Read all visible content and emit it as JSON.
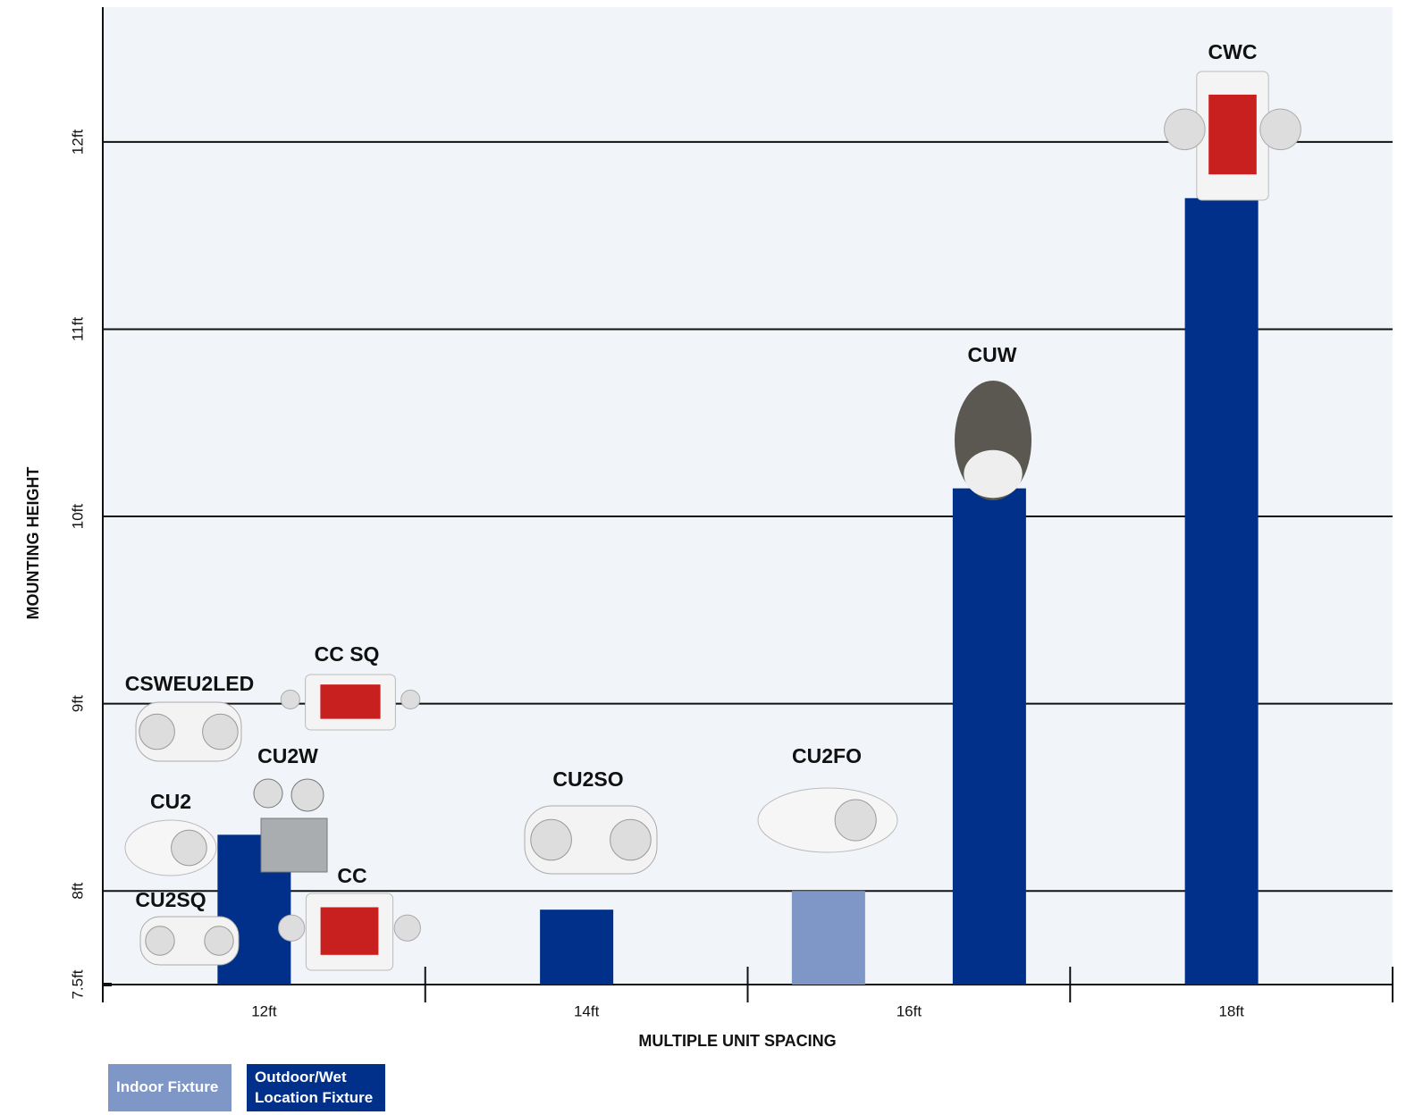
{
  "chart_data": {
    "type": "bar",
    "categories": [
      "12ft",
      "14ft",
      "16ft",
      "18ft"
    ],
    "x_label": "MULTIPLE UNIT SPACING",
    "y_label": "MOUNTING HEIGHT",
    "ylim": [
      7.5,
      12.72
    ],
    "yticks": [
      {
        "value": 7.5,
        "label": "7.5ft"
      },
      {
        "value": 8,
        "label": "8ft"
      },
      {
        "value": 9,
        "label": "9ft"
      },
      {
        "value": 10,
        "label": "10ft"
      },
      {
        "value": 11,
        "label": "11ft"
      },
      {
        "value": 12,
        "label": "12ft"
      }
    ],
    "grid": true,
    "series": [
      {
        "name": "Indoor Fixture",
        "color": "#7f97c6",
        "values": [
          null,
          null,
          8,
          null
        ]
      },
      {
        "name": "Outdoor/Wet Location Fixture",
        "color": "#00308a",
        "values": [
          8.3,
          7.9,
          10.15,
          11.7
        ]
      }
    ],
    "annotations": [
      "CSWEU2LED",
      "CC SQ",
      "CU2W",
      "CU2",
      "CC",
      "CU2SQ",
      "CU2SO",
      "CU2FO",
      "CUW",
      "CWC"
    ]
  }
}
